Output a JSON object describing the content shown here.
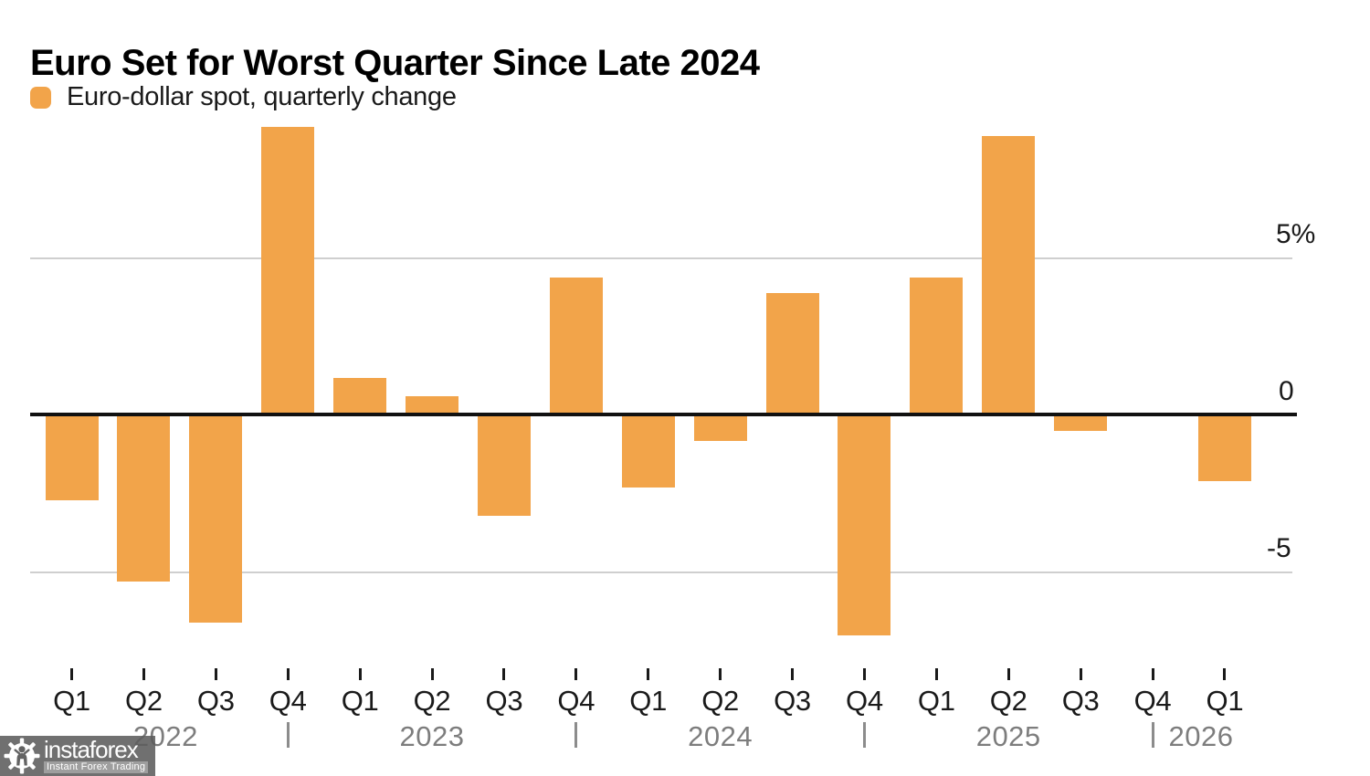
{
  "title": "Euro Set for Worst Quarter Since Late 2024",
  "legend": {
    "label": "Euro-dollar spot, quarterly change",
    "swatch_color": "#F2A44A"
  },
  "colors": {
    "bar": "#F2A44A",
    "grid": "#cfcfcf",
    "zero_line": "#111111",
    "axis_text": "#1a1a1a",
    "year_text": "#7d7d7d"
  },
  "y_axis": {
    "labels": {
      "pos5": "5%",
      "zero": "0",
      "neg5": "-5"
    },
    "tick_values": [
      5,
      0,
      -5
    ]
  },
  "watermark": {
    "brand": "instaforex",
    "tagline": "Instant Forex Trading",
    "icon": "gear-person-icon"
  },
  "chart_data": {
    "type": "bar",
    "title": "Euro Set for Worst Quarter Since Late 2024",
    "series_name": "Euro-dollar spot, quarterly change",
    "categories": [
      "Q1 2022",
      "Q2 2022",
      "Q3 2022",
      "Q4 2022",
      "Q1 2023",
      "Q2 2023",
      "Q3 2023",
      "Q4 2023",
      "Q1 2024",
      "Q2 2024",
      "Q3 2024",
      "Q4 2024",
      "Q1 2025",
      "Q2 2025",
      "Q3 2025",
      "Q4 2025",
      "Q1 2026"
    ],
    "quarter_labels": [
      "Q1",
      "Q2",
      "Q3",
      "Q4",
      "Q1",
      "Q2",
      "Q3",
      "Q4",
      "Q1",
      "Q2",
      "Q3",
      "Q4",
      "Q1",
      "Q2",
      "Q3",
      "Q4",
      "Q1"
    ],
    "values": [
      -2.7,
      -5.3,
      -6.6,
      9.2,
      1.2,
      0.6,
      -3.2,
      4.4,
      -2.3,
      -0.8,
      3.9,
      -7.0,
      4.4,
      8.9,
      -0.5,
      0.1,
      -2.1
    ],
    "unit": "%",
    "years": [
      "2022",
      "2023",
      "2024",
      "2025",
      "2026"
    ],
    "year_separator_after_indices": [
      3,
      7,
      11,
      15
    ],
    "ylabel": "",
    "xlabel": "",
    "ylim": [
      -7.5,
      9.5
    ],
    "grid": "horizontal",
    "legend_position": "top-left"
  }
}
